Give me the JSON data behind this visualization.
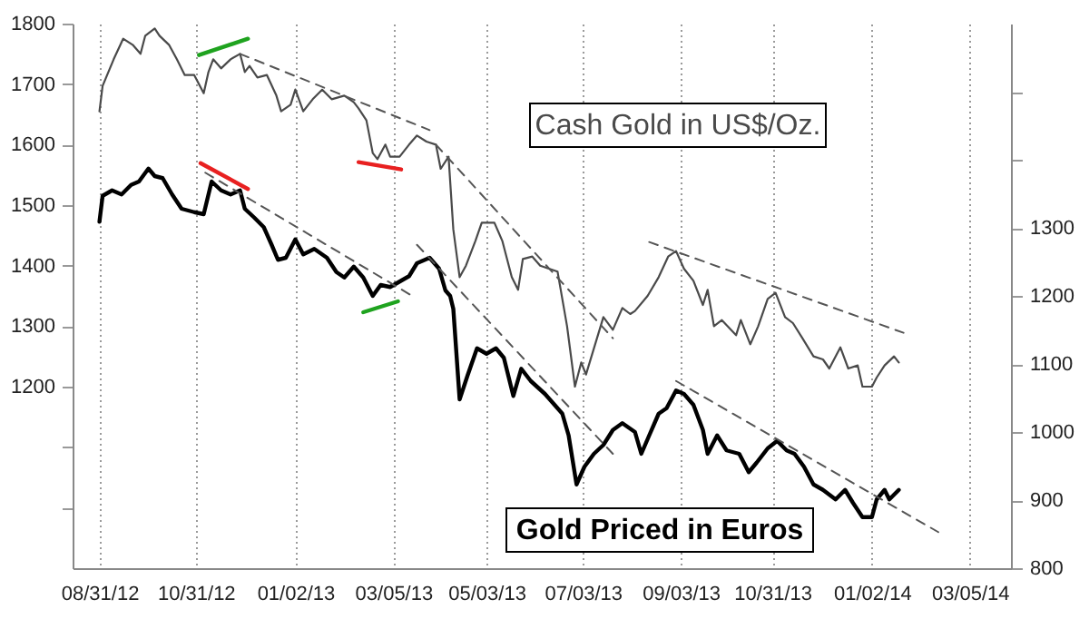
{
  "chart_data": {
    "type": "line",
    "xlim": [
      "2012-08-14",
      "2014-03-31"
    ],
    "xticks": [
      {
        "value": "2012-08-31",
        "label": "08/31/12"
      },
      {
        "value": "2012-10-31",
        "label": "10/31/12"
      },
      {
        "value": "2013-01-02",
        "label": "01/02/13"
      },
      {
        "value": "2013-03-05",
        "label": "03/05/13"
      },
      {
        "value": "2013-05-03",
        "label": "05/03/13"
      },
      {
        "value": "2013-07-03",
        "label": "07/03/13"
      },
      {
        "value": "2013-09-03",
        "label": "09/03/13"
      },
      {
        "value": "2013-10-31",
        "label": "10/31/13"
      },
      {
        "value": "2014-01-02",
        "label": "01/02/14"
      },
      {
        "value": "2014-03-05",
        "label": "03/05/14"
      }
    ],
    "ylim": [
      900,
      1800
    ],
    "yticks": [
      {
        "value": 1000,
        "label": null
      },
      {
        "value": 1100,
        "label": null
      },
      1200,
      1300,
      1400,
      1500,
      1600,
      1700,
      1800
    ],
    "y2lim": [
      800,
      1600
    ],
    "y2ticks": [
      800,
      900,
      1000,
      1100,
      1200,
      1300,
      {
        "value": 1400,
        "label": null
      },
      {
        "value": 1500,
        "label": null
      }
    ],
    "grid": "x",
    "series": [
      {
        "name": "Cash Gold in US$/Oz.",
        "color": "#4a4a4a",
        "x": [
          "2012-08-31",
          "2012-09-02",
          "2012-09-09",
          "2012-09-15",
          "2012-09-21",
          "2012-09-26",
          "2012-09-29",
          "2012-10-05",
          "2012-10-08",
          "2012-10-14",
          "2012-10-19",
          "2012-10-24",
          "2012-10-30",
          "2012-11-05",
          "2012-11-08",
          "2012-11-11",
          "2012-11-16",
          "2012-11-22",
          "2012-11-28",
          "2012-12-01",
          "2012-12-04",
          "2012-12-09",
          "2012-12-15",
          "2012-12-21",
          "2012-12-24",
          "2012-12-30",
          "2013-01-02",
          "2013-01-07",
          "2013-01-13",
          "2013-01-19",
          "2013-01-25",
          "2013-02-02",
          "2013-02-08",
          "2013-02-11",
          "2013-02-16",
          "2013-02-20",
          "2013-02-23",
          "2013-02-28",
          "2013-03-03",
          "2013-03-09",
          "2013-03-15",
          "2013-03-20",
          "2013-03-26",
          "2013-04-01",
          "2013-04-04",
          "2013-04-09",
          "2013-04-12",
          "2013-04-16",
          "2013-04-20",
          "2013-04-26",
          "2013-04-30",
          "2013-05-08",
          "2013-05-13",
          "2013-05-19",
          "2013-05-23",
          "2013-05-26",
          "2013-06-01",
          "2013-06-06",
          "2013-06-17",
          "2013-06-23",
          "2013-06-28",
          "2013-07-02",
          "2013-07-05",
          "2013-07-16",
          "2013-07-22",
          "2013-07-28",
          "2013-08-02",
          "2013-08-05",
          "2013-08-13",
          "2013-08-20",
          "2013-08-26",
          "2013-08-31",
          "2013-09-05",
          "2013-09-11",
          "2013-09-17",
          "2013-09-20",
          "2013-09-24",
          "2013-09-29",
          "2013-10-08",
          "2013-10-11",
          "2013-10-17",
          "2013-10-22",
          "2013-10-28",
          "2013-11-02",
          "2013-11-08",
          "2013-11-13",
          "2013-11-19",
          "2013-11-26",
          "2013-12-02",
          "2013-12-06",
          "2013-12-13",
          "2013-12-18",
          "2013-12-24",
          "2013-12-27",
          "2014-01-02",
          "2014-01-05",
          "2014-01-10",
          "2014-01-16",
          "2014-01-19"
        ],
        "values": [
          1655,
          1697,
          1741,
          1775,
          1765,
          1750,
          1780,
          1792,
          1780,
          1765,
          1741,
          1715,
          1715,
          1685,
          1720,
          1741,
          1726,
          1741,
          1750,
          1720,
          1730,
          1711,
          1715,
          1681,
          1655,
          1666,
          1691,
          1655,
          1675,
          1691,
          1675,
          1681,
          1670,
          1660,
          1640,
          1586,
          1576,
          1600,
          1580,
          1580,
          1600,
          1615,
          1605,
          1600,
          1560,
          1580,
          1460,
          1381,
          1400,
          1441,
          1471,
          1471,
          1441,
          1381,
          1360,
          1411,
          1415,
          1400,
          1390,
          1300,
          1200,
          1240,
          1220,
          1315,
          1294,
          1330,
          1320,
          1325,
          1350,
          1381,
          1415,
          1424,
          1395,
          1375,
          1335,
          1360,
          1300,
          1310,
          1285,
          1310,
          1270,
          1300,
          1345,
          1355,
          1315,
          1305,
          1280,
          1250,
          1245,
          1230,
          1265,
          1230,
          1235,
          1200,
          1200,
          1215,
          1235,
          1250,
          1240
        ]
      },
      {
        "name": "Gold Priced in Euros",
        "axis": "y2",
        "color": "#000000",
        "x": [
          "2012-08-31",
          "2012-09-02",
          "2012-09-08",
          "2012-09-14",
          "2012-09-20",
          "2012-09-25",
          "2012-10-01",
          "2012-10-05",
          "2012-10-10",
          "2012-10-16",
          "2012-10-22",
          "2012-10-30",
          "2012-11-05",
          "2012-11-10",
          "2012-11-16",
          "2012-11-22",
          "2012-11-28",
          "2012-12-01",
          "2012-12-07",
          "2012-12-13",
          "2012-12-18",
          "2012-12-22",
          "2012-12-27",
          "2013-01-02",
          "2013-01-07",
          "2013-01-14",
          "2013-01-22",
          "2013-01-28",
          "2013-02-02",
          "2013-02-08",
          "2013-02-14",
          "2013-02-20",
          "2013-02-25",
          "2013-03-03",
          "2013-03-09",
          "2013-03-15",
          "2013-03-20",
          "2013-03-28",
          "2013-04-03",
          "2013-04-07",
          "2013-04-10",
          "2013-04-12",
          "2013-04-16",
          "2013-04-21",
          "2013-04-27",
          "2013-05-03",
          "2013-05-09",
          "2013-05-14",
          "2013-05-20",
          "2013-05-25",
          "2013-05-31",
          "2013-06-09",
          "2013-06-20",
          "2013-06-24",
          "2013-06-29",
          "2013-07-04",
          "2013-07-10",
          "2013-07-16",
          "2013-07-22",
          "2013-07-28",
          "2013-08-05",
          "2013-08-09",
          "2013-08-14",
          "2013-08-20",
          "2013-08-25",
          "2013-08-31",
          "2013-09-05",
          "2013-09-11",
          "2013-09-17",
          "2013-09-20",
          "2013-09-26",
          "2013-10-02",
          "2013-10-10",
          "2013-10-16",
          "2013-10-21",
          "2013-10-28",
          "2013-11-03",
          "2013-11-09",
          "2013-11-14",
          "2013-11-20",
          "2013-11-26",
          "2013-12-02",
          "2013-12-10",
          "2013-12-16",
          "2013-12-21",
          "2013-12-27",
          "2014-01-02",
          "2014-01-05",
          "2014-01-10",
          "2014-01-13",
          "2014-01-19"
        ],
        "values": [
          1309,
          1347,
          1355,
          1349,
          1363,
          1368,
          1387,
          1376,
          1373,
          1349,
          1328,
          1323,
          1320,
          1368,
          1355,
          1349,
          1355,
          1328,
          1315,
          1301,
          1275,
          1253,
          1256,
          1283,
          1261,
          1269,
          1256,
          1235,
          1227,
          1243,
          1227,
          1200,
          1216,
          1213,
          1221,
          1229,
          1248,
          1256,
          1240,
          1208,
          1200,
          1181,
          1048,
          1083,
          1123,
          1115,
          1123,
          1109,
          1053,
          1093,
          1075,
          1056,
          1027,
          995,
          923,
          949,
          968,
          981,
          1003,
          1013,
          1000,
          968,
          995,
          1027,
          1035,
          1061,
          1056,
          1040,
          1003,
          968,
          995,
          973,
          968,
          941,
          955,
          976,
          987,
          973,
          968,
          949,
          923,
          915,
          901,
          915,
          896,
          875,
          875,
          901,
          915,
          901,
          915
        ]
      },
      {
        "color": "#555555",
        "line_style": "dashed",
        "x": [
          "2012-11-28",
          "2013-03-28"
        ],
        "values": [
          1750,
          1624
        ]
      },
      {
        "color": "#555555",
        "line_style": "dashed",
        "x": [
          "2013-04-01",
          "2013-07-22"
        ],
        "values": [
          1600,
          1280
        ]
      },
      {
        "color": "#555555",
        "line_style": "dashed",
        "x": [
          "2013-08-14",
          "2014-01-22"
        ],
        "values": [
          1439,
          1289
        ]
      },
      {
        "color": "#555555",
        "line_style": "dashed",
        "axis": "y2",
        "x": [
          "2012-11-06",
          "2013-03-17"
        ],
        "values": [
          1381,
          1200
        ]
      },
      {
        "color": "#555555",
        "line_style": "dashed",
        "axis": "y2",
        "x": [
          "2013-03-20",
          "2013-07-22"
        ],
        "values": [
          1275,
          968
        ]
      },
      {
        "color": "#555555",
        "line_style": "dashed",
        "axis": "y2",
        "x": [
          "2013-08-31",
          "2014-02-13"
        ],
        "values": [
          1075,
          853
        ]
      },
      {
        "color": "#1fa31f",
        "x": [
          "2012-11-02",
          "2012-12-03"
        ],
        "values": [
          1748,
          1775
        ]
      },
      {
        "color": "#e82020",
        "x": [
          "2013-02-11",
          "2013-03-10"
        ],
        "values": [
          1571,
          1559
        ]
      },
      {
        "color": "#e82020",
        "axis": "y2",
        "x": [
          "2012-11-03",
          "2012-12-03"
        ],
        "values": [
          1395,
          1357
        ]
      },
      {
        "color": "#1fa31f",
        "axis": "y2",
        "x": [
          "2013-02-14",
          "2013-03-08"
        ],
        "values": [
          1176,
          1192
        ]
      }
    ]
  }
}
